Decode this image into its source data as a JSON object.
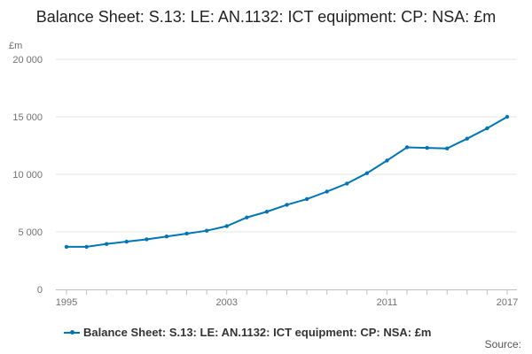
{
  "chart_data": {
    "type": "line",
    "title": "Balance Sheet: S.13: LE: AN.1132: ICT equipment: CP: NSA: £m",
    "y_unit_label": "£m",
    "x_tick_labels": [
      "1995",
      "2003",
      "2011",
      "2017"
    ],
    "y_tick_labels": [
      "0",
      "5 000",
      "10 000",
      "15 000",
      "20 000"
    ],
    "ylim": [
      0,
      20000
    ],
    "xlim": [
      1995,
      2017
    ],
    "series": [
      {
        "name": "Balance Sheet: S.13: LE: AN.1132: ICT equipment: CP: NSA: £m",
        "color": "#0075b5",
        "x": [
          1995,
          1996,
          1997,
          1998,
          1999,
          2000,
          2001,
          2002,
          2003,
          2004,
          2005,
          2006,
          2007,
          2008,
          2009,
          2010,
          2011,
          2012,
          2013,
          2014,
          2015,
          2016,
          2017
        ],
        "values": [
          3700,
          3700,
          3950,
          4150,
          4350,
          4600,
          4850,
          5100,
          5500,
          6250,
          6750,
          7350,
          7850,
          8500,
          9200,
          10100,
          11200,
          12350,
          12300,
          12250,
          13100,
          14000,
          15000
        ]
      }
    ],
    "grid": true,
    "legend_position": "bottom-left"
  },
  "footer": {
    "source_label": "Source:"
  }
}
